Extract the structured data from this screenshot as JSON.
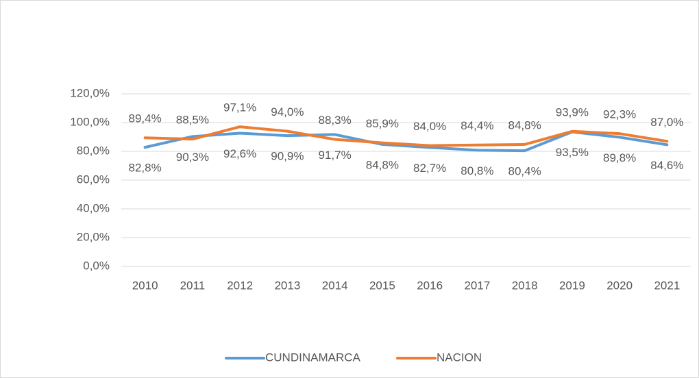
{
  "chart_data": {
    "type": "line",
    "categories": [
      "2010",
      "2011",
      "2012",
      "2013",
      "2014",
      "2015",
      "2016",
      "2017",
      "2018",
      "2019",
      "2020",
      "2021"
    ],
    "series": [
      {
        "name": "CUNDINAMARCA",
        "color": "#5b9bd5",
        "values": [
          82.8,
          90.3,
          92.6,
          90.9,
          91.7,
          84.8,
          82.7,
          80.8,
          80.4,
          93.5,
          89.8,
          84.6
        ],
        "value_labels": [
          "82,8%",
          "90,3%",
          "92,6%",
          "90,9%",
          "91,7%",
          "84,8%",
          "82,7%",
          "80,8%",
          "80,4%",
          "93,5%",
          "89,8%",
          "84,6%"
        ]
      },
      {
        "name": "NACION",
        "color": "#ed7d31",
        "values": [
          89.4,
          88.5,
          97.1,
          94.0,
          88.3,
          85.9,
          84.0,
          84.4,
          84.8,
          93.9,
          92.3,
          87.0
        ],
        "value_labels": [
          "89,4%",
          "88,5%",
          "97,1%",
          "94,0%",
          "88,3%",
          "85,9%",
          "84,0%",
          "84,4%",
          "84,8%",
          "93,9%",
          "92,3%",
          "87,0%"
        ]
      }
    ],
    "ylim": [
      0,
      120
    ],
    "yticks": [
      {
        "value": 0,
        "label": "0,0%"
      },
      {
        "value": 20,
        "label": "20,0%"
      },
      {
        "value": 40,
        "label": "40,0%"
      },
      {
        "value": 60,
        "label": "60,0%"
      },
      {
        "value": 80,
        "label": "80,0%"
      },
      {
        "value": 100,
        "label": "100,0%"
      },
      {
        "value": 120,
        "label": "120,0%"
      }
    ],
    "grid": true,
    "legend": "bottom"
  }
}
